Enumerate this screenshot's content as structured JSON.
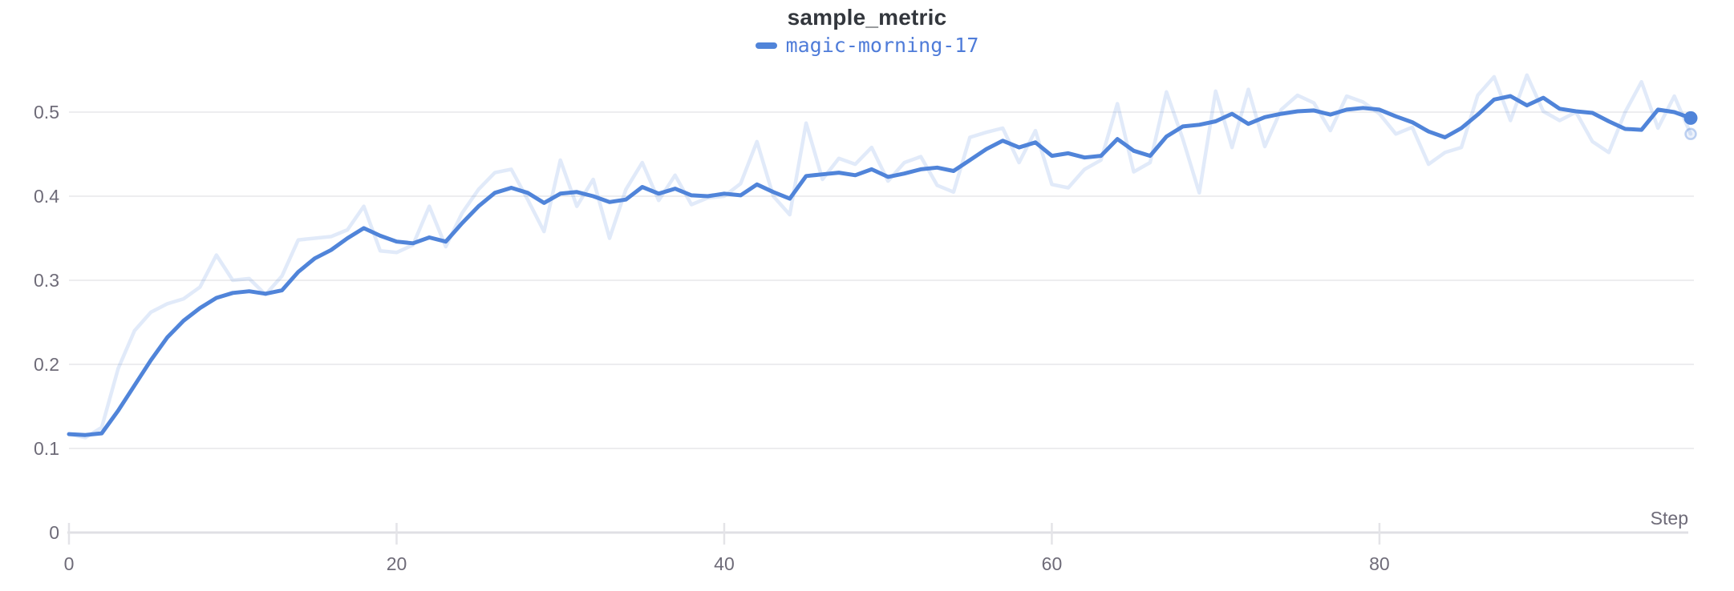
{
  "chart": {
    "title": "sample_metric",
    "legend_label": "magic-morning-17",
    "x_axis_label": "Step",
    "accent_color": "#5084d9",
    "legend_text_color": "#4f7cd9"
  },
  "colors": {
    "smoothed_line": "#5084d9",
    "raw_line": "rgba(80,132,217,0.17)",
    "raw_marker_stroke": "rgba(80,132,217,0.35)",
    "raw_marker_fill": "rgba(80,132,217,0.10)",
    "gridline": "#ededef",
    "axis_line": "#e0e0e4",
    "tick_mark": "#e4e4e8",
    "axis_text": "#6e6b78",
    "title_text": "#33373d",
    "background": "#ffffff"
  },
  "chart_data": {
    "type": "line",
    "title": "sample_metric",
    "xlabel": "Step",
    "ylabel": "",
    "x_start": 0,
    "x_step": 1,
    "x_range": [
      0,
      99
    ],
    "y_range": [
      0,
      0.55
    ],
    "x_ticks": [
      0,
      20,
      40,
      60,
      80
    ],
    "y_ticks": [
      0,
      0.1,
      0.2,
      0.3,
      0.4,
      0.5
    ],
    "grid": "horizontal",
    "legend_position": "top-center",
    "series": [
      {
        "name": "magic-morning-17 (unsmoothed)",
        "style": "raw-faint",
        "end_marker": "ring",
        "values": [
          0.117,
          0.113,
          0.125,
          0.195,
          0.24,
          0.262,
          0.272,
          0.278,
          0.292,
          0.33,
          0.3,
          0.302,
          0.283,
          0.305,
          0.348,
          0.35,
          0.352,
          0.36,
          0.388,
          0.335,
          0.333,
          0.342,
          0.388,
          0.34,
          0.38,
          0.408,
          0.428,
          0.432,
          0.396,
          0.358,
          0.443,
          0.388,
          0.42,
          0.35,
          0.408,
          0.44,
          0.395,
          0.425,
          0.39,
          0.398,
          0.4,
          0.415,
          0.465,
          0.4,
          0.378,
          0.487,
          0.42,
          0.445,
          0.438,
          0.458,
          0.418,
          0.44,
          0.447,
          0.413,
          0.405,
          0.47,
          0.476,
          0.481,
          0.44,
          0.478,
          0.414,
          0.41,
          0.432,
          0.443,
          0.51,
          0.429,
          0.44,
          0.524,
          0.468,
          0.404,
          0.525,
          0.458,
          0.527,
          0.459,
          0.503,
          0.52,
          0.511,
          0.478,
          0.519,
          0.512,
          0.498,
          0.474,
          0.482,
          0.438,
          0.452,
          0.458,
          0.52,
          0.542,
          0.49,
          0.544,
          0.501,
          0.49,
          0.5,
          0.465,
          0.452,
          0.5,
          0.536,
          0.481,
          0.519,
          0.474
        ]
      },
      {
        "name": "magic-morning-17",
        "style": "smoothed",
        "end_marker": "dot",
        "values": [
          0.117,
          0.116,
          0.118,
          0.145,
          0.175,
          0.205,
          0.232,
          0.252,
          0.267,
          0.279,
          0.285,
          0.287,
          0.284,
          0.288,
          0.31,
          0.326,
          0.336,
          0.35,
          0.362,
          0.353,
          0.346,
          0.344,
          0.351,
          0.346,
          0.368,
          0.388,
          0.404,
          0.41,
          0.404,
          0.392,
          0.403,
          0.405,
          0.4,
          0.393,
          0.396,
          0.411,
          0.403,
          0.409,
          0.401,
          0.4,
          0.403,
          0.401,
          0.414,
          0.405,
          0.397,
          0.424,
          0.426,
          0.428,
          0.425,
          0.432,
          0.423,
          0.427,
          0.432,
          0.434,
          0.43,
          0.443,
          0.456,
          0.466,
          0.458,
          0.464,
          0.448,
          0.451,
          0.446,
          0.448,
          0.468,
          0.454,
          0.448,
          0.471,
          0.483,
          0.485,
          0.489,
          0.498,
          0.486,
          0.494,
          0.498,
          0.501,
          0.502,
          0.497,
          0.503,
          0.505,
          0.503,
          0.495,
          0.488,
          0.477,
          0.47,
          0.481,
          0.497,
          0.515,
          0.519,
          0.508,
          0.517,
          0.504,
          0.501,
          0.499,
          0.489,
          0.48,
          0.479,
          0.503,
          0.5,
          0.493
        ]
      }
    ]
  }
}
